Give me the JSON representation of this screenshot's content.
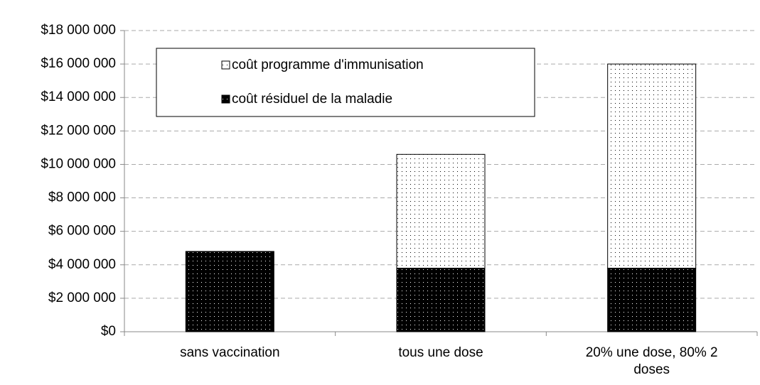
{
  "chart_data": {
    "type": "stacked_bar",
    "categories": [
      "sans vaccination",
      "tous une dose",
      "20% une dose, 80% 2 doses"
    ],
    "series": [
      {
        "name": "coût résiduel de la maladie",
        "color": "#000000",
        "values": [
          4800000,
          3800000,
          3800000
        ]
      },
      {
        "name": "coût programme d'immunisation",
        "color": "#ffffff",
        "values": [
          0,
          6800000,
          12200000
        ]
      }
    ],
    "ylim": [
      0,
      18000000
    ],
    "yticks": [
      {
        "value": 0,
        "label": "$0"
      },
      {
        "value": 2000000,
        "label": "$2 000 000"
      },
      {
        "value": 4000000,
        "label": "$4 000 000"
      },
      {
        "value": 6000000,
        "label": "$6 000 000"
      },
      {
        "value": 8000000,
        "label": "$8 000 000"
      },
      {
        "value": 10000000,
        "label": "$10 000 000"
      },
      {
        "value": 12000000,
        "label": "$12 000 000"
      },
      {
        "value": 14000000,
        "label": "$14 000 000"
      },
      {
        "value": 16000000,
        "label": "$16 000 000"
      },
      {
        "value": 18000000,
        "label": "$18 000 000"
      }
    ],
    "grid": true,
    "legend": "upper-left"
  }
}
